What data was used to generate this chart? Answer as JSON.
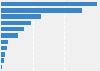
{
  "values": [
    1000,
    840,
    420,
    310,
    240,
    180,
    75,
    60,
    45,
    30,
    15
  ],
  "bar_color": "#3a86c8",
  "background_color": "#f0f0f0",
  "plot_bg_color": "#f0f0f0",
  "grid_color": "#ffffff",
  "figsize": [
    1.0,
    0.71
  ],
  "dpi": 100,
  "bar_height": 0.72
}
